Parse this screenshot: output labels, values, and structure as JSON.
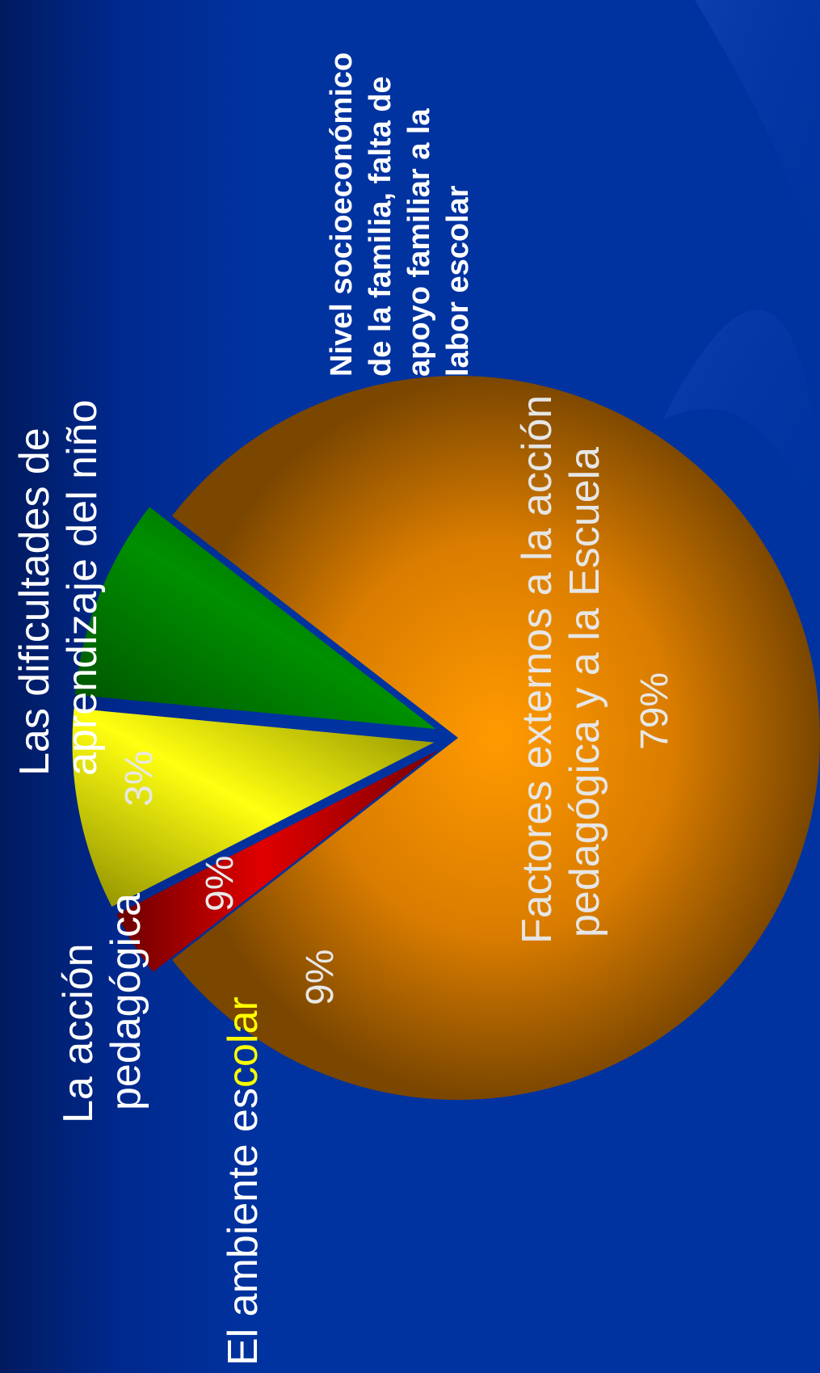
{
  "colors": {
    "background": "#0033a0",
    "orange": "#f59300",
    "red": "#d40000",
    "yellow": "#ffff00",
    "green": "#008a00"
  },
  "chart_data": {
    "type": "pie",
    "title": "",
    "slices": [
      {
        "name": "Factores externos a la acción pedagógica y a la Escuela",
        "value": 79,
        "label": "79%",
        "color": "#f59300"
      },
      {
        "name": "Las dificultades de aprendizaje del niño",
        "value": 3,
        "label": "3%",
        "color": "#d40000"
      },
      {
        "name": "La acción pedagógica",
        "value": 9,
        "label": "9%",
        "color": "#ffff00"
      },
      {
        "name": "El ambiente escolar",
        "value": 9,
        "label": "9%",
        "color": "#008a00"
      }
    ],
    "annotations": {
      "dificultades": [
        "Las dificultades de",
        "aprendizaje del niño"
      ],
      "accion": [
        "La acción",
        "pedagógica"
      ],
      "ambiente_a": "El ambiente es",
      "ambiente_b": "colar",
      "factores": [
        "Factores externos a la acción",
        "pedagógica y a la Escuela"
      ],
      "nivel": [
        "Nivel socioeconómico",
        "de la familia, falta de",
        "apoyo familiar a la",
        "labor escolar"
      ]
    }
  }
}
